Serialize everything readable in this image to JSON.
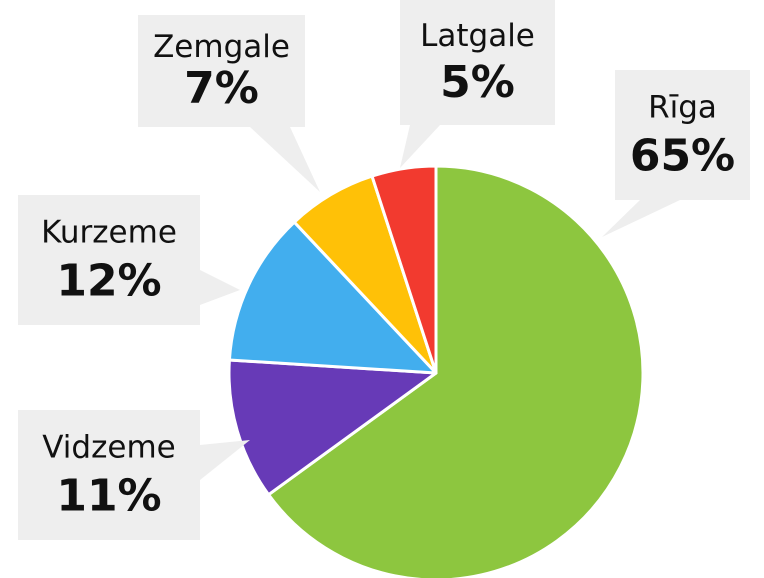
{
  "chart_data": {
    "type": "pie",
    "categories": [
      "Rīga",
      "Vidzeme",
      "Kurzeme",
      "Zemgale",
      "Latgale"
    ],
    "values": [
      65,
      11,
      12,
      7,
      5
    ],
    "value_labels": [
      "65%",
      "11%",
      "12%",
      "7%",
      "5%"
    ],
    "colors": [
      "#8dc63f",
      "#673ab7",
      "#42aeee",
      "#ffc107",
      "#f23a2f"
    ]
  }
}
